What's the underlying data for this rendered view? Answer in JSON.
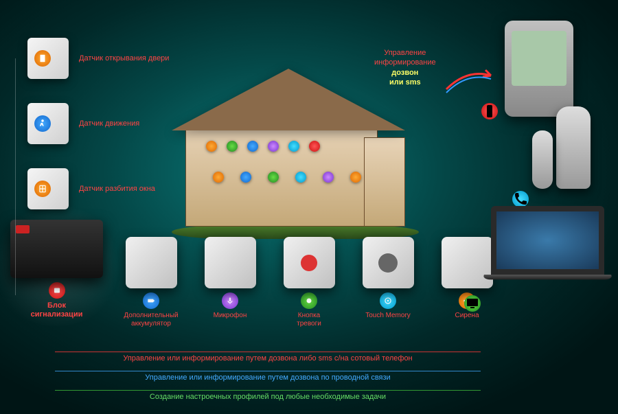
{
  "type": "infographic",
  "background_gradient": [
    "#0a7a7a",
    "#044848",
    "#012828",
    "#001515"
  ],
  "side_items": [
    {
      "label": "Датчик открывания двери",
      "icon": "door",
      "icon_color": "#ee8800"
    },
    {
      "label": "Датчик движения",
      "icon": "motion",
      "icon_color": "#44aaff"
    },
    {
      "label": "Датчик разбития окна",
      "icon": "glass",
      "icon_color": "#ee8800"
    }
  ],
  "main_block": {
    "label_l1": "Блок",
    "label_l2": "сигнализации",
    "icon": "alarm",
    "icon_color": "#ff4444"
  },
  "bottom_items": [
    {
      "label": "Дополнительный\nаккумулятор",
      "icon": "battery",
      "icon_color": "#1166cc"
    },
    {
      "label": "Микрофон",
      "icon": "mic",
      "icon_color": "#7733cc"
    },
    {
      "label": "Кнопка\nтревоги",
      "icon": "panic",
      "icon_color": "#228822"
    },
    {
      "label": "Touch Memory",
      "icon": "touch",
      "icon_color": "#0099cc"
    },
    {
      "label": "Сирена",
      "icon": "siren",
      "icon_color": "#ee8800"
    }
  ],
  "callout": {
    "l1": "Управление",
    "l2": "информирование",
    "l3": "дозвон",
    "l4": "или sms"
  },
  "right_devices": [
    {
      "name": "pda",
      "icon_color": "#ff4444"
    },
    {
      "name": "dect",
      "icon_color": "#0099cc"
    },
    {
      "name": "laptop",
      "icon_color": "#228822"
    }
  ],
  "footer": {
    "red": "Управление или информирование путем дозвона либо sms с/на сотовый телефон",
    "blue": "Управление или информирование путем дозвона по проводной связи",
    "green": "Создание настроечных профилей под любые необходимые задачи"
  },
  "colors": {
    "accent_red": "#ff4444",
    "accent_orange": "#ee8800",
    "accent_blue": "#44aaff",
    "accent_green": "#66dd44",
    "accent_cyan": "#44ddff",
    "accent_purple": "#cc88ff"
  }
}
